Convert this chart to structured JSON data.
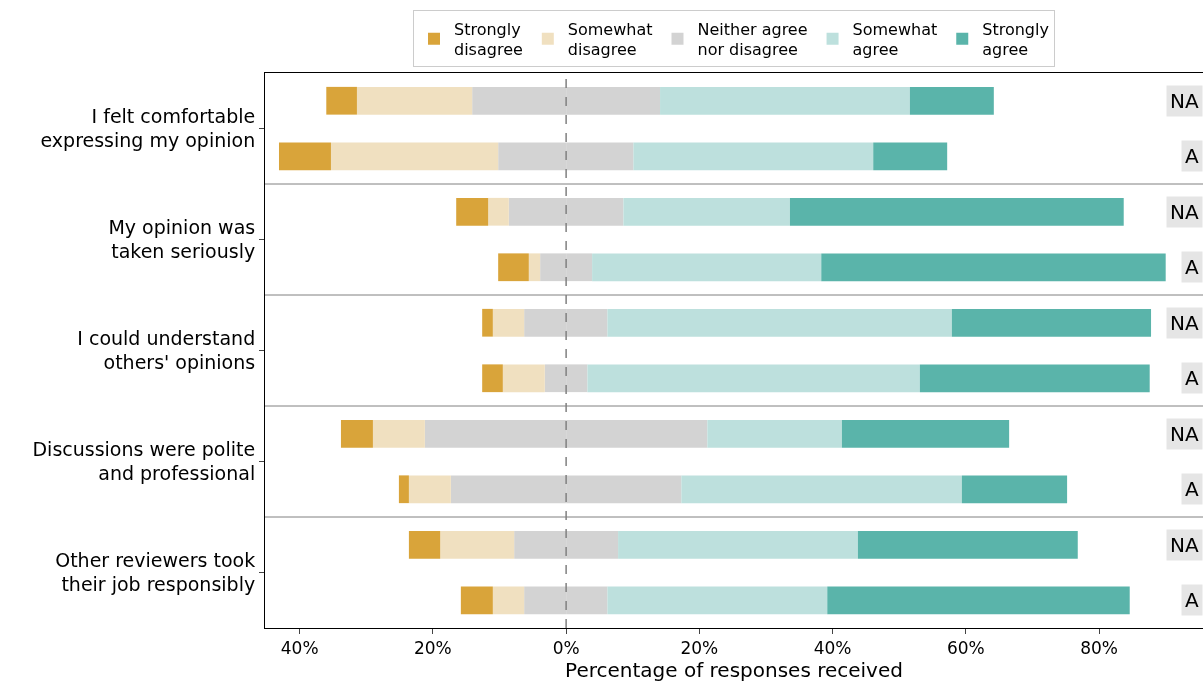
{
  "chart_data": {
    "type": "bar",
    "orientation": "horizontal",
    "stacked": true,
    "xlabel": "Percentage of responses received",
    "categories": [
      "NA",
      "A",
      "NA",
      "A",
      "NA",
      "A",
      "NA",
      "A",
      "NA",
      "A"
    ],
    "annotations": [
      "I felt comfortable\nexpressing my opinion",
      "My opinion was\ntaken seriously",
      "I could understand\nothers' opinions",
      "Discussions were polite\nand professional",
      "Other reviewers took\ntheir job responsibly"
    ],
    "series": [
      {
        "color": "#d3d3d3",
        "values": [
          -14.1,
          -10.2,
          -8.6,
          -3.9,
          -6.3,
          -3.2,
          -21.2,
          -17.3,
          -7.8,
          -6.3
        ]
      },
      {
        "name": "Somewhat\ndisagree",
        "color": "#f0e0c0",
        "values": [
          -17.3,
          -25.1,
          -3.1,
          -1.7,
          -4.7,
          -6.3,
          -7.8,
          -6.3,
          -11.1,
          -4.7
        ]
      },
      {
        "name": "Strongly\ndisagree",
        "color": "#d9a43a",
        "values": [
          -4.6,
          -7.8,
          -4.8,
          -4.6,
          -1.6,
          -3.1,
          -4.8,
          -1.5,
          -4.7,
          -4.8
        ]
      },
      {
        "name": "Neither agree\nnor disagree",
        "color": "#d3d3d3",
        "values": [
          14.1,
          10.1,
          8.6,
          3.9,
          6.2,
          3.2,
          21.2,
          17.3,
          7.8,
          6.2
        ]
      },
      {
        "name": "Somewhat\nagree",
        "color": "#bde0dd",
        "values": [
          37.5,
          36.0,
          25.0,
          34.4,
          51.7,
          49.9,
          20.2,
          42.1,
          36.0,
          33.0
        ]
      },
      {
        "name": "Strongly\nagree",
        "color": "#5ab4aa",
        "values": [
          12.6,
          11.1,
          50.1,
          51.7,
          29.9,
          34.5,
          25.1,
          15.8,
          33.0,
          45.4
        ]
      }
    ],
    "xlim": [
      -45.2,
      95.6
    ],
    "xticks": [
      {
        "value": -40,
        "label": "40%"
      },
      {
        "value": -20,
        "label": "20%"
      },
      {
        "value": 0,
        "label": "0%"
      },
      {
        "value": 20,
        "label": "20%"
      },
      {
        "value": 40,
        "label": "40%"
      },
      {
        "value": 60,
        "label": "60%"
      },
      {
        "value": 80,
        "label": "80%"
      }
    ],
    "ref_lines": [
      {
        "axis": "x",
        "value": 0,
        "color": "#808080",
        "line_style": "dashed"
      }
    ],
    "legend": "top"
  }
}
